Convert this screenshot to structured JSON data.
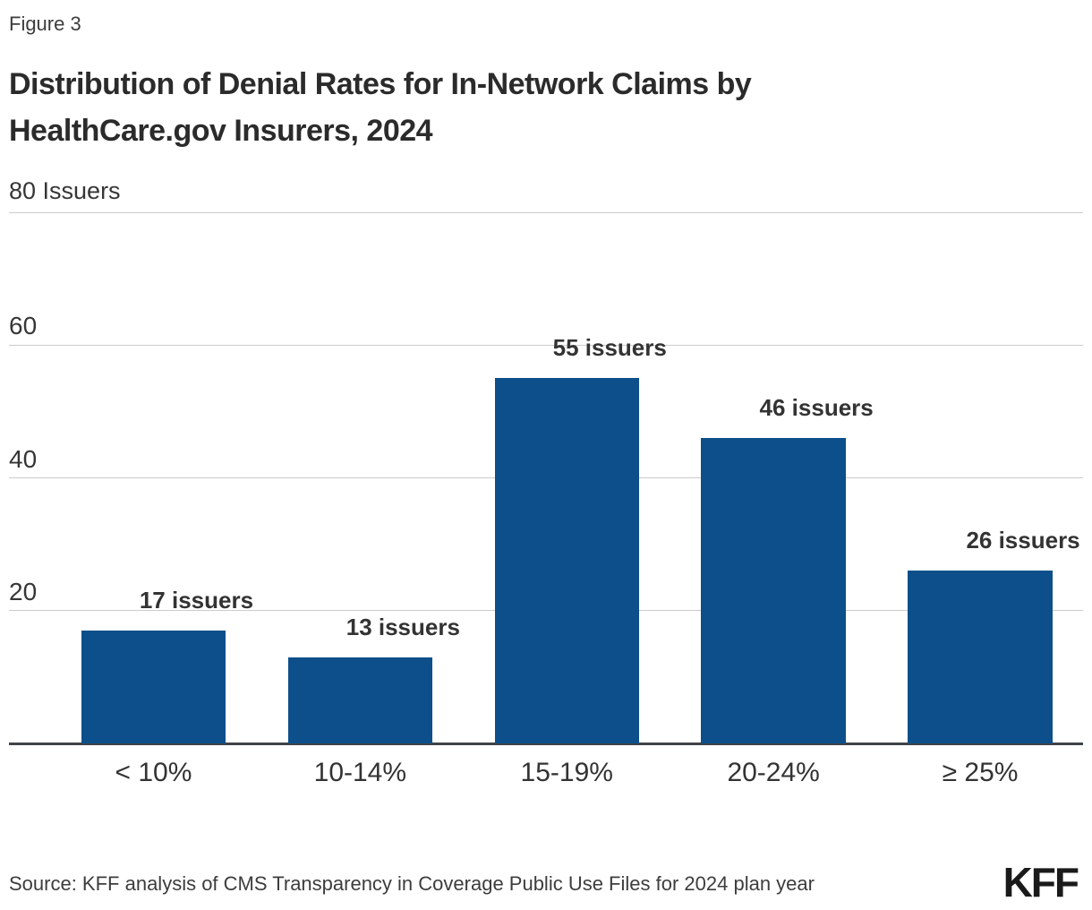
{
  "figure": {
    "label": "Figure 3"
  },
  "title": {
    "lines": [
      "Distribution of Denial Rates for In-Network Claims by",
      "HealthCare.gov Insurers, 2024"
    ]
  },
  "y_axis": {
    "unit_label": "80 Issuers",
    "ticks": [
      20,
      40,
      60
    ],
    "max": 80
  },
  "chart_data": {
    "type": "bar",
    "title": "Distribution of Denial Rates for In-Network Claims by HealthCare.gov Insurers, 2024",
    "categories": [
      "< 10%",
      "10-14%",
      "15-19%",
      "20-24%",
      "≥ 25%"
    ],
    "values": [
      17,
      13,
      55,
      46,
      26
    ],
    "bar_labels": [
      "17 issuers",
      "13 issuers",
      "55 issuers",
      "46 issuers",
      "26 issuers"
    ],
    "xlabel": "",
    "ylabel": "Issuers",
    "ylim": [
      0,
      80
    ],
    "yticks": [
      20,
      40,
      60,
      80
    ],
    "grid": true,
    "legend": false,
    "bar_color": "#0C4F8A"
  },
  "colors": {
    "bar": "#0C4F8A",
    "axis": "#404347",
    "gridline": "#cccccc",
    "text": "#333333"
  },
  "source": {
    "text": "Source: KFF analysis of CMS Transparency in Coverage Public Use Files for 2024 plan year"
  },
  "branding": {
    "logo_text": "KFF"
  }
}
